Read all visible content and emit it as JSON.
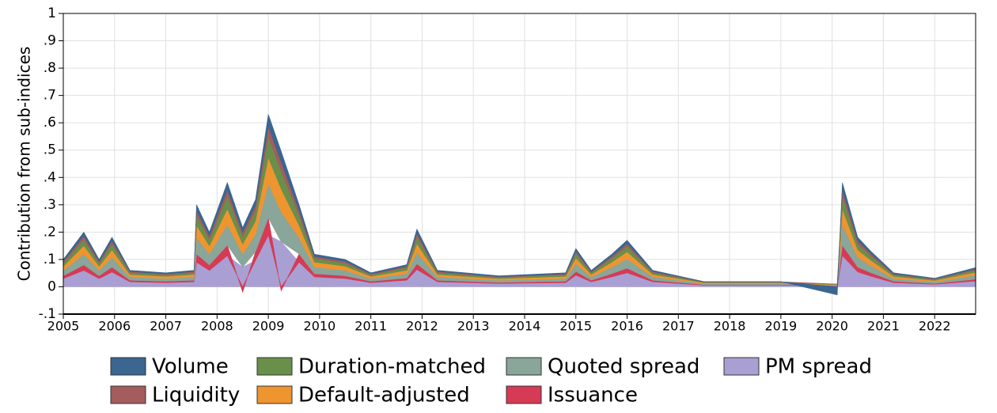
{
  "chart_data": {
    "type": "stacked-area",
    "y_label": "Contribution from sub-indices",
    "x": [
      2005.0,
      2005.4,
      2005.7,
      2005.95,
      2006.3,
      2007.0,
      2007.55,
      2007.6,
      2007.85,
      2008.2,
      2008.5,
      2008.75,
      2009.0,
      2009.25,
      2009.6,
      2009.9,
      2010.5,
      2011.0,
      2011.7,
      2011.9,
      2012.3,
      2013.5,
      2014.8,
      2015.0,
      2015.3,
      2015.7,
      2016.0,
      2016.5,
      2017.5,
      2019.0,
      2020.1,
      2020.2,
      2020.5,
      2020.75,
      2021.2,
      2022.0,
      2022.8
    ],
    "xlim": [
      2005,
      2022.8
    ],
    "xticks": [
      2005,
      2006,
      2007,
      2008,
      2009,
      2010,
      2011,
      2012,
      2013,
      2014,
      2015,
      2016,
      2017,
      2018,
      2019,
      2020,
      2021,
      2022
    ],
    "ylim": [
      -0.1,
      1
    ],
    "yticks": [
      {
        "value": -0.1,
        "label": "-.1"
      },
      0,
      {
        "value": 0.1,
        "label": ".1"
      },
      {
        "value": 0.2,
        "label": ".2"
      },
      {
        "value": 0.3,
        "label": ".3"
      },
      {
        "value": 0.4,
        "label": ".4"
      },
      {
        "value": 0.5,
        "label": ".5"
      },
      {
        "value": 0.6,
        "label": ".6"
      },
      {
        "value": 0.7,
        "label": ".7"
      },
      {
        "value": 0.8,
        "label": ".8"
      },
      {
        "value": 0.9,
        "label": ".9"
      },
      1
    ],
    "grid": true,
    "series": [
      {
        "name": "Volume",
        "color": "#3a6690",
        "values": [
          0.007,
          0.014,
          0.007,
          0.013,
          0.004,
          0.004,
          0.004,
          0.021,
          0.014,
          0.027,
          0.017,
          0.022,
          0.044,
          0.039,
          0.021,
          0.008,
          0.007,
          0.004,
          0.006,
          0.015,
          0.004,
          0.003,
          0.004,
          0.01,
          0.004,
          0.008,
          0.012,
          0.004,
          0.001,
          0.001,
          -0.03,
          0.027,
          0.013,
          0.009,
          0.004,
          0.002,
          0.005
        ]
      },
      {
        "name": "Liquidity",
        "color": "#a45c5c",
        "values": [
          0.006,
          0.012,
          0.006,
          0.011,
          0.004,
          0.003,
          0.004,
          0.018,
          0.012,
          0.023,
          0.014,
          0.019,
          0.038,
          0.033,
          0.018,
          0.007,
          0.006,
          0.003,
          0.005,
          0.013,
          0.004,
          0.002,
          0.003,
          0.008,
          0.004,
          0.007,
          0.01,
          0.004,
          0.001,
          0.001,
          0.001,
          0.023,
          0.011,
          0.008,
          0.003,
          0.002,
          0.004
        ]
      },
      {
        "name": "Duration-matched",
        "color": "#6a8f4a",
        "values": [
          0.012,
          0.024,
          0.012,
          0.022,
          0.007,
          0.006,
          0.007,
          0.036,
          0.024,
          0.046,
          0.029,
          0.038,
          0.076,
          0.066,
          0.036,
          0.014,
          0.012,
          0.006,
          0.01,
          0.025,
          0.007,
          0.005,
          0.006,
          0.017,
          0.007,
          0.014,
          0.02,
          0.007,
          0.002,
          0.002,
          0.001,
          0.046,
          0.022,
          0.016,
          0.006,
          0.004,
          0.008
        ]
      },
      {
        "name": "Default-adjusted",
        "color": "#ee9530",
        "values": [
          0.015,
          0.03,
          0.015,
          0.027,
          0.009,
          0.008,
          0.009,
          0.045,
          0.03,
          0.057,
          0.036,
          0.048,
          0.095,
          0.083,
          0.045,
          0.018,
          0.015,
          0.008,
          0.012,
          0.032,
          0.009,
          0.006,
          0.008,
          0.021,
          0.009,
          0.018,
          0.026,
          0.009,
          0.003,
          0.003,
          0.002,
          0.057,
          0.027,
          0.02,
          0.008,
          0.005,
          0.011
        ]
      },
      {
        "name": "Quoted spread",
        "color": "#8aa59a",
        "values": [
          0.02,
          0.04,
          0.02,
          0.036,
          0.012,
          0.01,
          0.012,
          0.06,
          0.04,
          0.076,
          0.048,
          0.064,
          0.126,
          0.11,
          0.06,
          0.024,
          0.02,
          0.01,
          0.016,
          0.042,
          0.012,
          0.008,
          0.01,
          0.028,
          0.012,
          0.024,
          0.034,
          0.012,
          0.004,
          0.004,
          0.002,
          0.076,
          0.036,
          0.026,
          0.01,
          0.006,
          0.014
        ]
      },
      {
        "name": "Issuance",
        "color": "#d63a55",
        "values": [
          0.01,
          0.02,
          0.01,
          0.018,
          0.006,
          0.005,
          0.006,
          0.03,
          0.02,
          0.038,
          -0.02,
          0.032,
          0.063,
          -0.015,
          0.03,
          0.012,
          0.01,
          0.005,
          0.008,
          0.021,
          0.006,
          0.004,
          0.005,
          0.014,
          0.006,
          0.012,
          0.017,
          0.006,
          0.002,
          0.002,
          0.001,
          0.038,
          0.018,
          0.013,
          0.005,
          0.003,
          0.007
        ]
      },
      {
        "name": "PM spread",
        "color": "#a99fd3",
        "values": [
          0.03,
          0.06,
          0.03,
          0.054,
          0.018,
          0.015,
          0.018,
          0.09,
          0.06,
          0.114,
          0.072,
          0.096,
          0.189,
          0.165,
          0.09,
          0.036,
          0.03,
          0.015,
          0.024,
          0.063,
          0.018,
          0.012,
          0.015,
          0.042,
          0.018,
          0.036,
          0.051,
          0.018,
          0.006,
          0.006,
          0.003,
          0.114,
          0.054,
          0.039,
          0.015,
          0.009,
          0.021
        ]
      }
    ]
  }
}
